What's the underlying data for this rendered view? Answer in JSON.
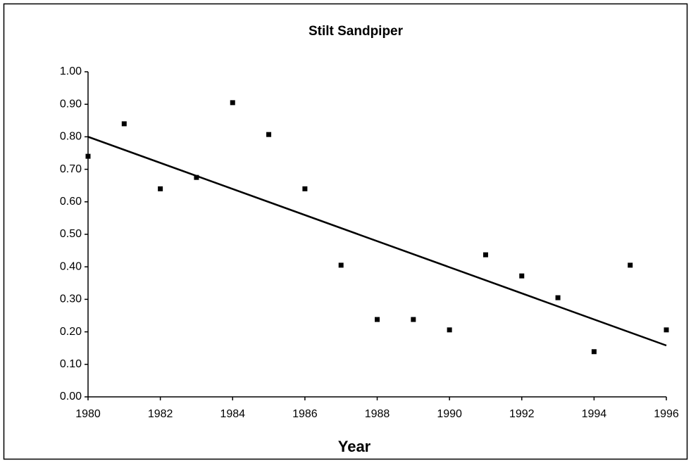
{
  "chart_data": {
    "type": "scatter",
    "title": "Stilt Sandpiper",
    "x_label": "Year",
    "x": [
      1980,
      1981,
      1982,
      1983,
      1984,
      1985,
      1986,
      1987,
      1988,
      1989,
      1990,
      1991,
      1992,
      1993,
      1994,
      1995,
      1996
    ],
    "values": [
      0.74,
      0.84,
      0.64,
      0.675,
      0.905,
      0.807,
      0.64,
      0.405,
      0.238,
      0.238,
      0.206,
      0.437,
      0.372,
      0.305,
      0.139,
      0.405,
      0.206
    ],
    "color": "#000000",
    "trendline": {
      "x": [
        1980,
        1996
      ],
      "values": [
        0.8,
        0.158
      ],
      "color": "#000000"
    },
    "xlim": [
      1980,
      1996
    ],
    "xticks": [
      1980,
      1982,
      1984,
      1986,
      1988,
      1990,
      1992,
      1994,
      1996
    ],
    "ylim": [
      0,
      1
    ],
    "yticks": [
      {
        "value": 0,
        "label": "0.00"
      },
      {
        "value": 0.1,
        "label": "0.10"
      },
      {
        "value": 0.2,
        "label": "0.20"
      },
      {
        "value": 0.3,
        "label": "0.30"
      },
      {
        "value": 0.4,
        "label": "0.40"
      },
      {
        "value": 0.5,
        "label": "0.50"
      },
      {
        "value": 0.6,
        "label": "0.60"
      },
      {
        "value": 0.7,
        "label": "0.70"
      },
      {
        "value": 0.8,
        "label": "0.80"
      },
      {
        "value": 0.9,
        "label": "0.90"
      },
      {
        "value": 1,
        "label": "1.00"
      }
    ],
    "grid": false
  }
}
